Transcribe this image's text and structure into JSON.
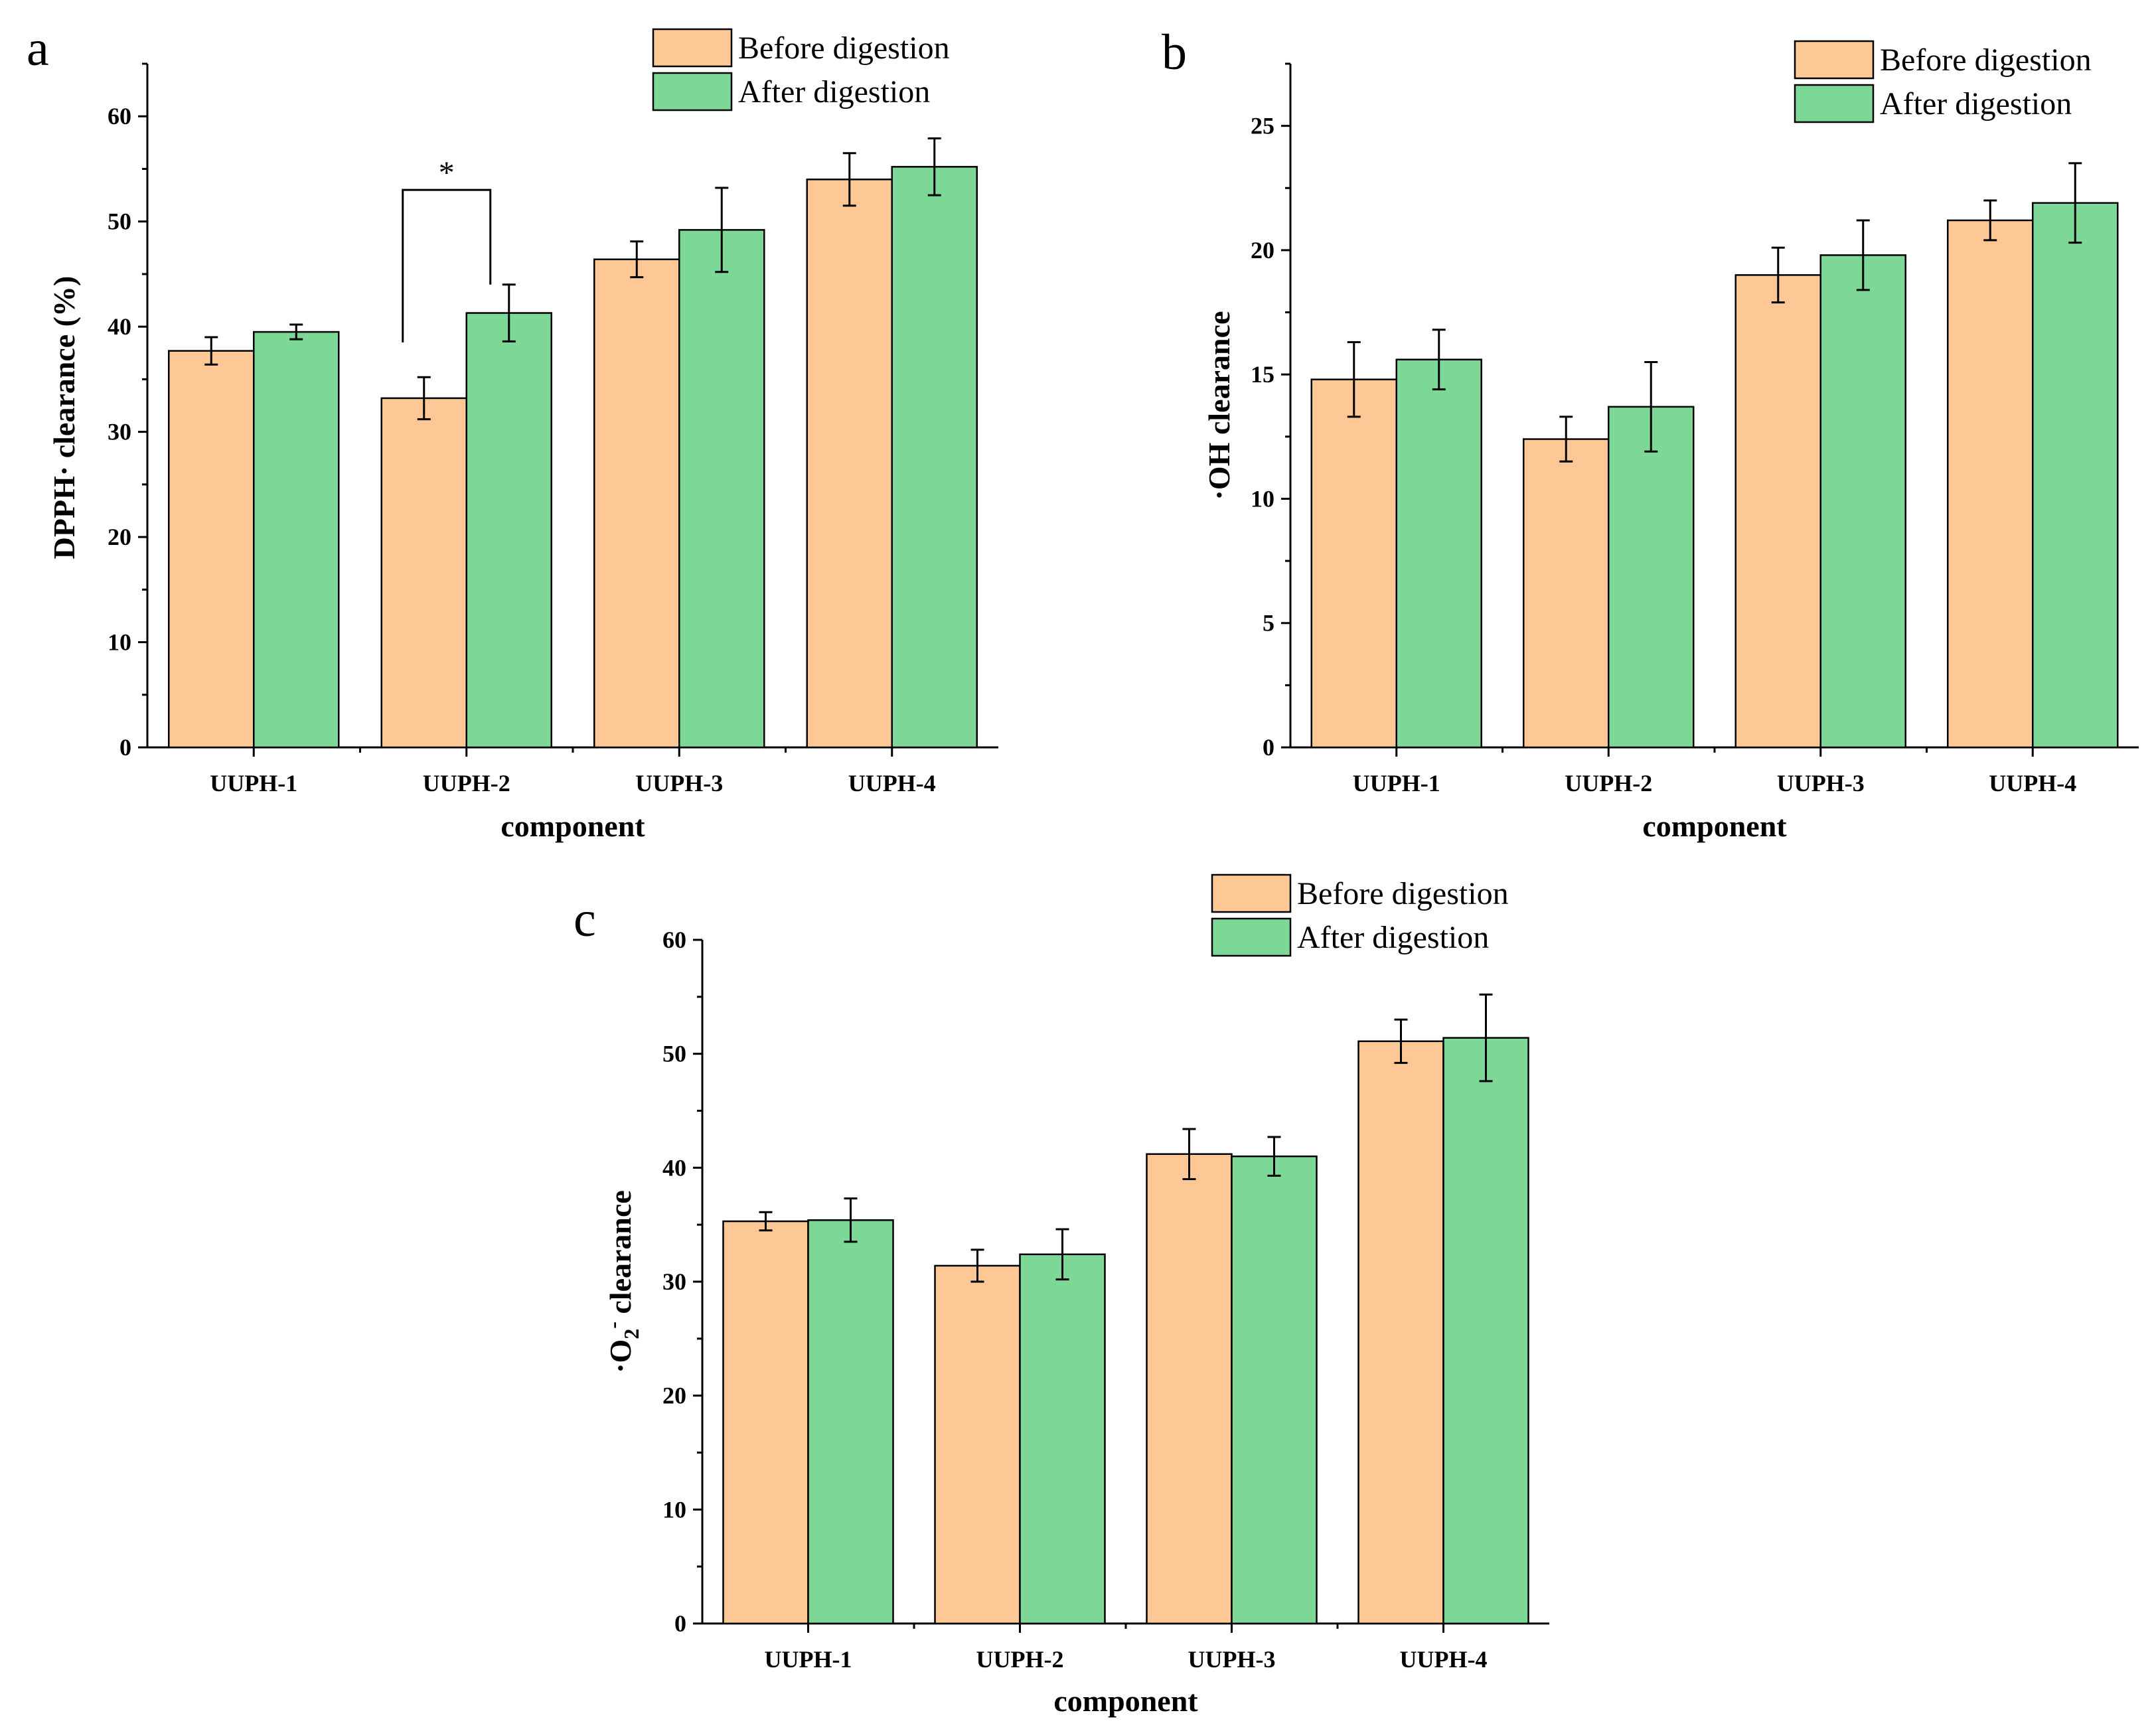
{
  "colors": {
    "before": "#FDC896",
    "after": "#7DD898",
    "axis": "#000000"
  },
  "chart_data": [
    {
      "id": "a",
      "type": "bar",
      "panel_label": "a",
      "title": "",
      "xlabel": "component",
      "ylabel": "DPPH· clearance (%)",
      "ylim": [
        0,
        65
      ],
      "yticks": [
        "0",
        "10",
        "20",
        "30",
        "40",
        "50",
        "60"
      ],
      "categories": [
        "UUPH-1",
        "UUPH-2",
        "UUPH-3",
        "UUPH-4"
      ],
      "series": [
        {
          "name": "Before digestion",
          "values": [
            37.7,
            33.2,
            46.4,
            54.0
          ],
          "errors": [
            1.3,
            2.0,
            1.7,
            2.5
          ]
        },
        {
          "name": "After digestion",
          "values": [
            39.5,
            41.3,
            49.2,
            55.2
          ],
          "errors": [
            0.7,
            2.7,
            4.0,
            2.7
          ]
        }
      ],
      "annotations": [
        {
          "text": "*",
          "category_index": 1,
          "bracket_top": 53,
          "left_base": 38.5,
          "right_base": 44.0
        }
      ],
      "legend_position": "top-right",
      "grid": false
    },
    {
      "id": "b",
      "type": "bar",
      "panel_label": "b",
      "title": "",
      "xlabel": "component",
      "ylabel": "·OH clearance",
      "ylim": [
        0,
        27.5
      ],
      "yticks": [
        "0",
        "5",
        "10",
        "15",
        "20",
        "25"
      ],
      "categories": [
        "UUPH-1",
        "UUPH-2",
        "UUPH-3",
        "UUPH-4"
      ],
      "series": [
        {
          "name": "Before digestion",
          "values": [
            14.8,
            12.4,
            19.0,
            21.2
          ],
          "errors": [
            1.5,
            0.9,
            1.1,
            0.8
          ]
        },
        {
          "name": "After digestion",
          "values": [
            15.6,
            13.7,
            19.8,
            21.9
          ],
          "errors": [
            1.2,
            1.8,
            1.4,
            1.6
          ]
        }
      ],
      "legend_position": "top-right",
      "grid": false
    },
    {
      "id": "c",
      "type": "bar",
      "panel_label": "c",
      "title": "",
      "xlabel": "component",
      "ylabel": "·O2⁻ clearance",
      "ylabel_parts": {
        "prefix": "·O",
        "subscript": "2",
        "superscript": "-",
        "suffix": " clearance"
      },
      "ylim": [
        0,
        60
      ],
      "yticks": [
        "0",
        "10",
        "20",
        "30",
        "40",
        "50",
        "60"
      ],
      "categories": [
        "UUPH-1",
        "UUPH-2",
        "UUPH-3",
        "UUPH-4"
      ],
      "series": [
        {
          "name": "Before digestion",
          "values": [
            35.3,
            31.4,
            41.2,
            51.1
          ],
          "errors": [
            0.8,
            1.4,
            2.2,
            1.9
          ]
        },
        {
          "name": "After digestion",
          "values": [
            35.4,
            32.4,
            41.0,
            51.4
          ],
          "errors": [
            1.9,
            2.2,
            1.7,
            3.8
          ]
        }
      ],
      "legend_position": "top-right",
      "grid": false
    }
  ]
}
